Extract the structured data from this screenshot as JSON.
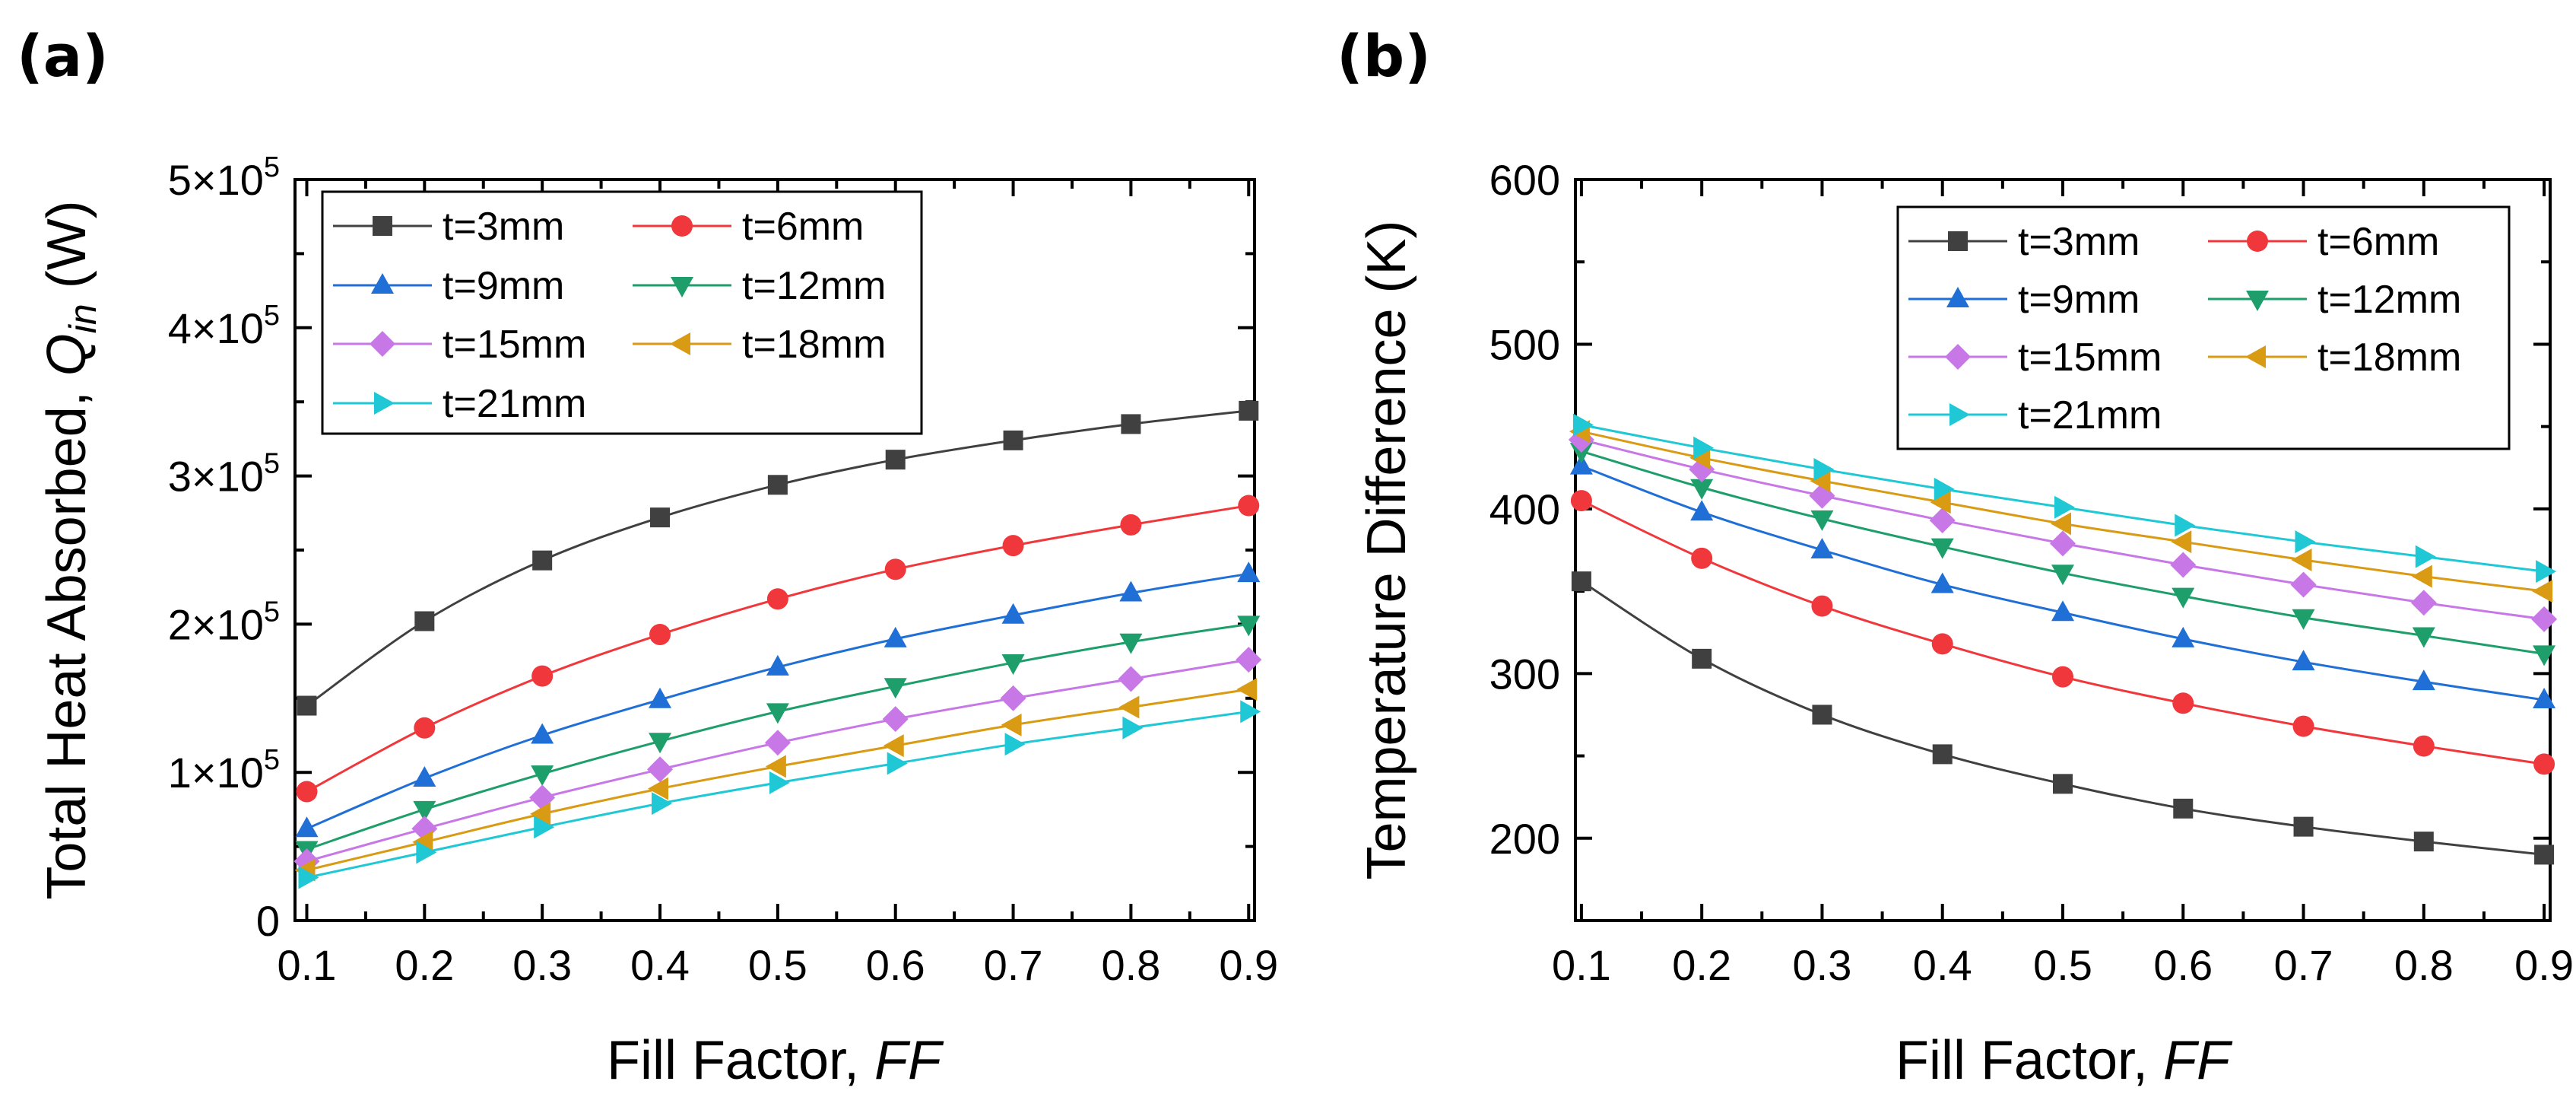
{
  "chart_data": [
    {
      "panel_label": "(a)",
      "type": "line",
      "xlabel": "Fill Factor,",
      "xlabel_italic": "FF",
      "ylabel": "Total Heat Absorbed,",
      "ylabel_symbol": "Q",
      "ylabel_subscript": "in",
      "ylabel_unit": "(W)",
      "x": [
        0.1,
        0.2,
        0.3,
        0.4,
        0.5,
        0.6,
        0.7,
        0.8,
        0.9
      ],
      "xlim": [
        0.09,
        0.905
      ],
      "ylim": [
        0,
        500000
      ],
      "xticks": [
        "0.1",
        "0.2",
        "0.3",
        "0.4",
        "0.5",
        "0.6",
        "0.7",
        "0.8",
        "0.9"
      ],
      "yticks": [
        {
          "value": 0,
          "label": "0"
        },
        {
          "value": 100000,
          "label": "1×10",
          "exp": "5"
        },
        {
          "value": 200000,
          "label": "2×10",
          "exp": "5"
        },
        {
          "value": 300000,
          "label": "3×10",
          "exp": "5"
        },
        {
          "value": 400000,
          "label": "4×10",
          "exp": "5"
        },
        {
          "value": 500000,
          "label": "5×10",
          "exp": "5"
        }
      ],
      "legend_position": "top-left",
      "series": [
        {
          "name": "t=3mm",
          "color": "#404040",
          "marker": "square",
          "values": [
            145000,
            202000,
            243000,
            272000,
            294000,
            311000,
            324000,
            335000,
            344000
          ]
        },
        {
          "name": "t=6mm",
          "color": "#f0383c",
          "marker": "circle",
          "values": [
            87000,
            130000,
            165000,
            193000,
            217000,
            237000,
            253000,
            267000,
            280000
          ]
        },
        {
          "name": "t=9mm",
          "color": "#1f6fd6",
          "marker": "triangle-up",
          "values": [
            62000,
            96000,
            125000,
            149000,
            171000,
            190000,
            206000,
            221000,
            234000
          ]
        },
        {
          "name": "t=12mm",
          "color": "#1e9e6a",
          "marker": "triangle-down",
          "values": [
            48000,
            75000,
            99000,
            121000,
            141000,
            158000,
            174000,
            188000,
            200000
          ]
        },
        {
          "name": "t=15mm",
          "color": "#c777e6",
          "marker": "diamond",
          "values": [
            40000,
            62000,
            83000,
            102000,
            120000,
            136000,
            150000,
            163000,
            176000
          ]
        },
        {
          "name": "t=18mm",
          "color": "#d99a14",
          "marker": "triangle-left",
          "values": [
            34000,
            53000,
            72000,
            89000,
            104000,
            118000,
            132000,
            144000,
            156000
          ]
        },
        {
          "name": "t=21mm",
          "color": "#1fc8d4",
          "marker": "triangle-right",
          "values": [
            29000,
            46000,
            63000,
            79000,
            93000,
            106000,
            119000,
            130000,
            141000
          ]
        }
      ]
    },
    {
      "panel_label": "(b)",
      "type": "line",
      "xlabel": "Fill Factor,",
      "xlabel_italic": "FF",
      "ylabel": "Temperature Difference (K)",
      "x": [
        0.1,
        0.2,
        0.3,
        0.4,
        0.5,
        0.6,
        0.7,
        0.8,
        0.9
      ],
      "xlim": [
        0.095,
        0.905
      ],
      "ylim": [
        150,
        600
      ],
      "xticks": [
        "0.1",
        "0.2",
        "0.3",
        "0.4",
        "0.5",
        "0.6",
        "0.7",
        "0.8",
        "0.9"
      ],
      "yticks": [
        {
          "value": 200,
          "label": "200"
        },
        {
          "value": 300,
          "label": "300"
        },
        {
          "value": 400,
          "label": "400"
        },
        {
          "value": 500,
          "label": "500"
        },
        {
          "value": 600,
          "label": "600"
        }
      ],
      "legend_position": "top-right",
      "series": [
        {
          "name": "t=3mm",
          "color": "#404040",
          "marker": "square",
          "values": [
            356,
            309,
            275,
            251,
            233,
            218,
            207,
            198,
            190
          ]
        },
        {
          "name": "t=6mm",
          "color": "#f0383c",
          "marker": "circle",
          "values": [
            405,
            370,
            341,
            318,
            298,
            282,
            268,
            256,
            245
          ]
        },
        {
          "name": "t=9mm",
          "color": "#1f6fd6",
          "marker": "triangle-up",
          "values": [
            426,
            398,
            375,
            354,
            337,
            321,
            307,
            295,
            284
          ]
        },
        {
          "name": "t=12mm",
          "color": "#1e9e6a",
          "marker": "triangle-down",
          "values": [
            435,
            413,
            394,
            377,
            361,
            347,
            334,
            323,
            312
          ]
        },
        {
          "name": "t=15mm",
          "color": "#c777e6",
          "marker": "diamond",
          "values": [
            442,
            424,
            408,
            393,
            379,
            366,
            354,
            343,
            333
          ]
        },
        {
          "name": "t=18mm",
          "color": "#d99a14",
          "marker": "triangle-left",
          "values": [
            447,
            431,
            417,
            404,
            391,
            380,
            369,
            359,
            350
          ]
        },
        {
          "name": "t=21mm",
          "color": "#1fc8d4",
          "marker": "triangle-right",
          "values": [
            451,
            437,
            424,
            412,
            401,
            390,
            380,
            371,
            362
          ]
        }
      ]
    }
  ]
}
